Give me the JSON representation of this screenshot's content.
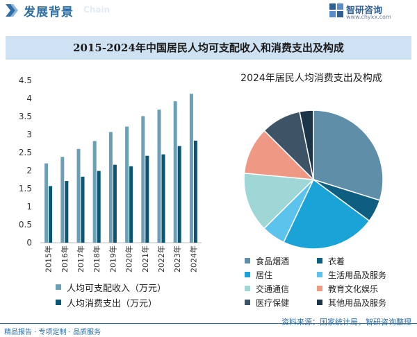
{
  "header": {
    "title": "发展背景",
    "title_en": "Chain",
    "logo_name": "智研咨询",
    "logo_url": "www.chyxx.com"
  },
  "main_title": "2015-2024年中国居民人均可支配收入和消费支出及构成",
  "colors": {
    "income": "#6a9fb5",
    "spending": "#0b5673",
    "brand": "#2e6fa7"
  },
  "chart_data": [
    {
      "type": "bar",
      "categories": [
        "2015年",
        "2016年",
        "2017年",
        "2018年",
        "2019年",
        "2020年",
        "2021年",
        "2022年",
        "2023年",
        "2024年"
      ],
      "series": [
        {
          "name": "人均可支配收入（万元）",
          "values": [
            2.2,
            2.38,
            2.6,
            2.82,
            3.07,
            3.22,
            3.51,
            3.69,
            3.92,
            4.13
          ]
        },
        {
          "name": "人均消费支出（万元）",
          "values": [
            1.57,
            1.71,
            1.83,
            1.99,
            2.16,
            2.12,
            2.41,
            2.45,
            2.68,
            2.83
          ]
        }
      ],
      "yticks": [
        "0",
        "0.5",
        "1",
        "1.5",
        "2",
        "2.5",
        "3",
        "3.5",
        "4",
        "4.5"
      ],
      "ylim": [
        0,
        4.5
      ],
      "grid": false,
      "legend_position": "bottom"
    },
    {
      "type": "pie",
      "title": "2024年居民人均消费支出及构成",
      "labels": [
        "食品烟酒",
        "衣着",
        "居住",
        "生活用品及服务",
        "交通通信",
        "教育文化娱乐",
        "医疗保健",
        "其他用品及服务"
      ],
      "values": [
        29.8,
        5.3,
        21.9,
        5.5,
        13.9,
        11.0,
        9.3,
        3.2
      ],
      "colors": [
        "#5f8ea8",
        "#0d5e80",
        "#1aa3d6",
        "#5bc3ec",
        "#9fd6d6",
        "#ef9984",
        "#3d5366",
        "#1c3548"
      ],
      "legend_position": "bottom"
    }
  ],
  "footer": {
    "left": "精品报告 · 专项定制 · 品质服务",
    "source": "资料来源：国家统计局，智研咨询整理"
  }
}
